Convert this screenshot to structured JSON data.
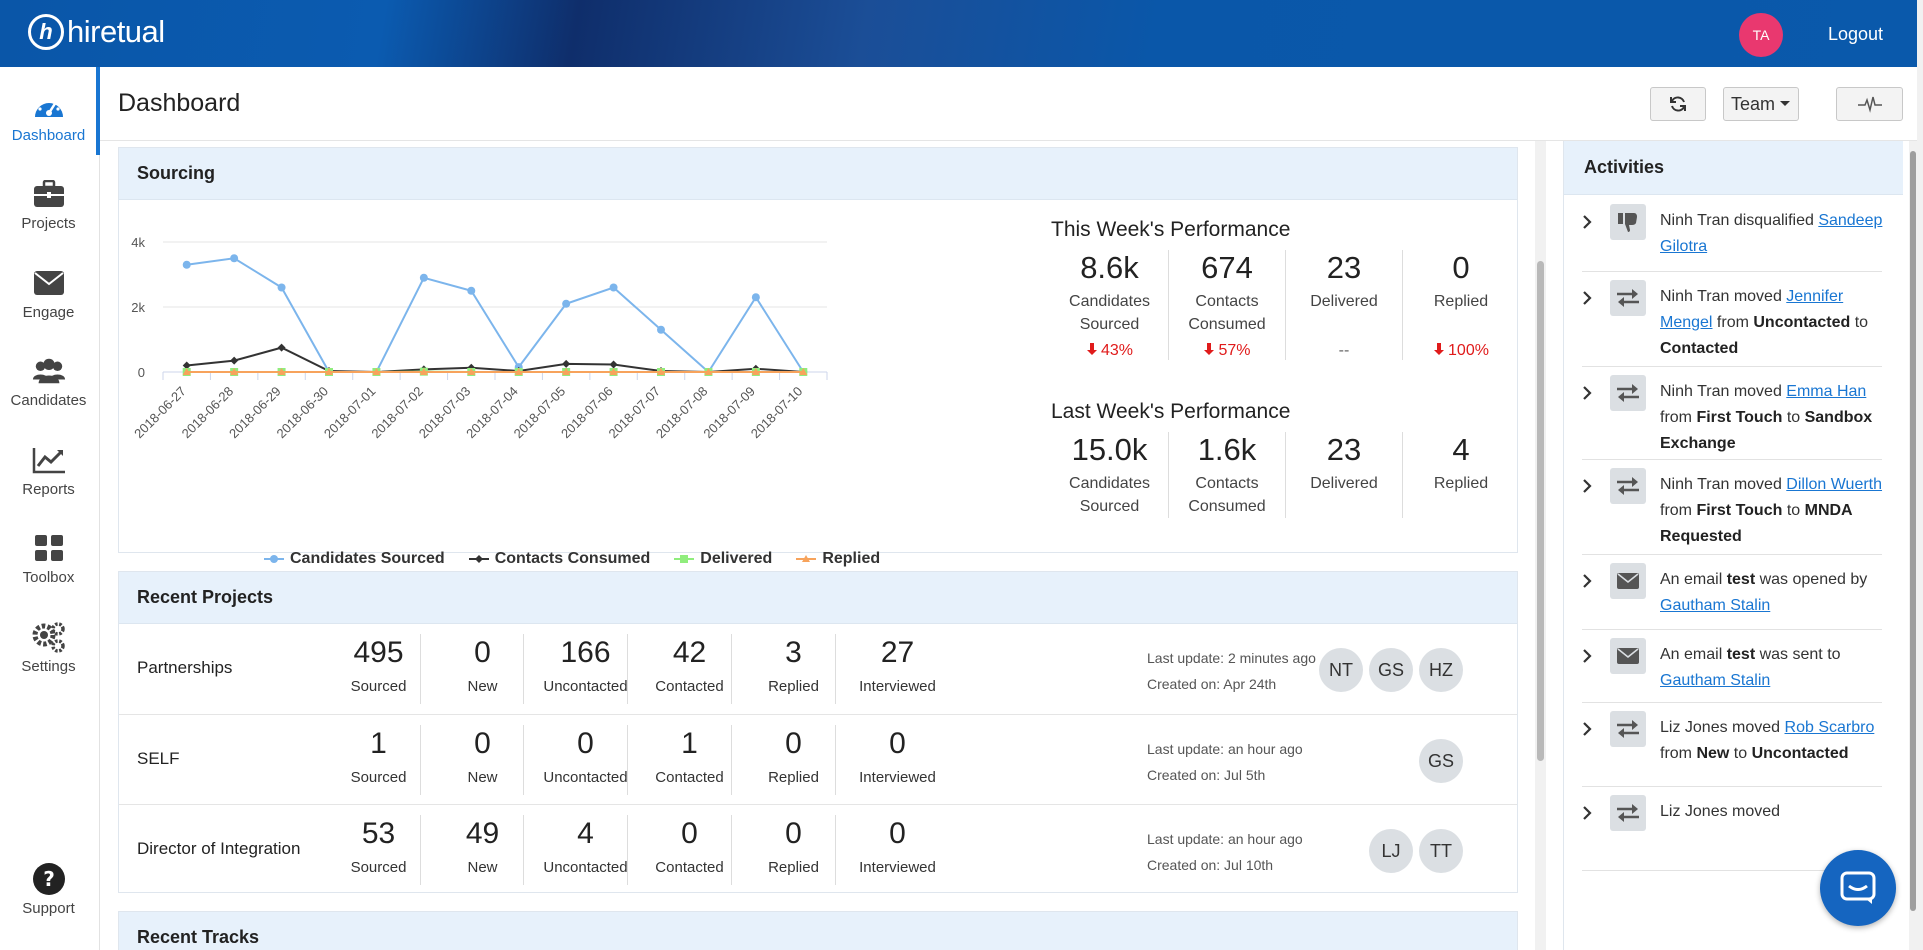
{
  "brand": {
    "logo_mark": "h",
    "name": "hiretual"
  },
  "topbar": {
    "avatar_initials": "TA",
    "logout_label": "Logout"
  },
  "sidebar": {
    "items": [
      {
        "label": "Dashboard",
        "icon": "gauge-icon",
        "active": true
      },
      {
        "label": "Projects",
        "icon": "briefcase-icon"
      },
      {
        "label": "Engage",
        "icon": "envelope-icon"
      },
      {
        "label": "Candidates",
        "icon": "users-icon"
      },
      {
        "label": "Reports",
        "icon": "chart-line-icon"
      },
      {
        "label": "Toolbox",
        "icon": "grid-icon"
      },
      {
        "label": "Settings",
        "icon": "gears-icon"
      }
    ],
    "support_label": "Support"
  },
  "header": {
    "title": "Dashboard",
    "team_label": "Team",
    "refresh_icon": "refresh-icon",
    "activity_icon": "pulse-icon"
  },
  "sourcing": {
    "title": "Sourcing",
    "this_week": {
      "title": "This Week's Performance",
      "cells": [
        {
          "value": "8.6k",
          "label1": "Candidates",
          "label2": "Sourced",
          "delta": "43%",
          "trend": "down"
        },
        {
          "value": "674",
          "label1": "Contacts",
          "label2": "Consumed",
          "delta": "57%",
          "trend": "down"
        },
        {
          "value": "23",
          "label1": "Delivered",
          "label2": "",
          "delta": "--",
          "trend": "none"
        },
        {
          "value": "0",
          "label1": "Replied",
          "label2": "",
          "delta": "100%",
          "trend": "down"
        }
      ]
    },
    "last_week": {
      "title": "Last Week's Performance",
      "cells": [
        {
          "value": "15.0k",
          "label1": "Candidates",
          "label2": "Sourced"
        },
        {
          "value": "1.6k",
          "label1": "Contacts",
          "label2": "Consumed"
        },
        {
          "value": "23",
          "label1": "Delivered",
          "label2": ""
        },
        {
          "value": "4",
          "label1": "Replied",
          "label2": ""
        }
      ]
    }
  },
  "chart_data": {
    "type": "line",
    "x": [
      "2018-06-27",
      "2018-06-28",
      "2018-06-29",
      "2018-06-30",
      "2018-07-01",
      "2018-07-02",
      "2018-07-03",
      "2018-07-04",
      "2018-07-05",
      "2018-07-06",
      "2018-07-07",
      "2018-07-08",
      "2018-07-09",
      "2018-07-10"
    ],
    "yticks": [
      "0",
      "2k",
      "4k"
    ],
    "ylim": [
      0,
      4000
    ],
    "legend_position": "bottom",
    "grid": true,
    "series": [
      {
        "name": "Candidates Sourced",
        "color": "#7cb5ec",
        "marker": "circle",
        "values": [
          3300,
          3500,
          2600,
          0,
          0,
          2900,
          2500,
          150,
          2100,
          2600,
          1300,
          0,
          2300,
          0
        ]
      },
      {
        "name": "Contacts Consumed",
        "color": "#333333",
        "marker": "diamond",
        "values": [
          200,
          350,
          750,
          30,
          0,
          80,
          130,
          30,
          250,
          230,
          30,
          0,
          100,
          0
        ]
      },
      {
        "name": "Delivered",
        "color": "#90ed7d",
        "marker": "square",
        "values": [
          0,
          0,
          0,
          0,
          0,
          10,
          0,
          0,
          0,
          0,
          0,
          0,
          0,
          0
        ]
      },
      {
        "name": "Replied",
        "color": "#f7a35c",
        "marker": "triangle",
        "values": [
          0,
          0,
          0,
          0,
          0,
          0,
          0,
          0,
          0,
          0,
          0,
          0,
          0,
          0
        ]
      }
    ]
  },
  "projects": {
    "title": "Recent Projects",
    "stat_labels": [
      "Sourced",
      "New",
      "Uncontacted",
      "Contacted",
      "Replied",
      "Interviewed"
    ],
    "rows": [
      {
        "name": "Partnerships",
        "stats": [
          "495",
          "0",
          "166",
          "42",
          "3",
          "27"
        ],
        "last_update": "Last update: 2 minutes ago",
        "created": "Created on: Apr 24th",
        "members": [
          "NT",
          "GS",
          "HZ"
        ]
      },
      {
        "name": "SELF",
        "stats": [
          "1",
          "0",
          "0",
          "1",
          "0",
          "0"
        ],
        "last_update": "Last update: an hour ago",
        "created": "Created on: Jul 5th",
        "members": [
          "GS"
        ]
      },
      {
        "name": "Director of Integration",
        "stats": [
          "53",
          "49",
          "4",
          "0",
          "0",
          "0"
        ],
        "last_update": "Last update: an hour ago",
        "created": "Created on: Jul 10th",
        "members": [
          "LJ",
          "TT"
        ]
      }
    ]
  },
  "tracks": {
    "title": "Recent Tracks"
  },
  "activities": {
    "title": "Activities",
    "items": [
      {
        "icon": "thumbs-down-icon",
        "parts": [
          [
            "t",
            "Ninh Tran disqualified "
          ],
          [
            "a",
            "Sandeep Gilotra"
          ]
        ]
      },
      {
        "icon": "arrows-exchange-icon",
        "parts": [
          [
            "t",
            "Ninh Tran moved "
          ],
          [
            "a",
            "Jennifer Mengel"
          ],
          [
            "t",
            " from "
          ],
          [
            "b",
            "Uncontacted"
          ],
          [
            "t",
            " to "
          ],
          [
            "b",
            "Contacted"
          ]
        ]
      },
      {
        "icon": "arrows-exchange-icon",
        "parts": [
          [
            "t",
            "Ninh Tran moved "
          ],
          [
            "a",
            "Emma Han"
          ],
          [
            "t",
            " from "
          ],
          [
            "b",
            "First Touch"
          ],
          [
            "t",
            " to "
          ],
          [
            "b",
            "Sandbox Exchange"
          ]
        ]
      },
      {
        "icon": "arrows-exchange-icon",
        "parts": [
          [
            "t",
            "Ninh Tran moved "
          ],
          [
            "a",
            "Dillon Wuerth"
          ],
          [
            "t",
            " from "
          ],
          [
            "b",
            "First Touch"
          ],
          [
            "t",
            " to "
          ],
          [
            "b",
            "MNDA Requested"
          ]
        ]
      },
      {
        "icon": "envelope-icon",
        "parts": [
          [
            "t",
            "An email "
          ],
          [
            "b",
            "test"
          ],
          [
            "t",
            " was opened by "
          ],
          [
            "a",
            "Gautham Stalin"
          ]
        ]
      },
      {
        "icon": "envelope-icon",
        "parts": [
          [
            "t",
            "An email "
          ],
          [
            "b",
            "test"
          ],
          [
            "t",
            " was sent to "
          ],
          [
            "a",
            "Gautham Stalin"
          ]
        ]
      },
      {
        "icon": "arrows-exchange-icon",
        "parts": [
          [
            "t",
            "Liz Jones moved "
          ],
          [
            "a",
            "Rob Scarbro"
          ],
          [
            "t",
            " from "
          ],
          [
            "b",
            "New"
          ],
          [
            "t",
            " to "
          ],
          [
            "b",
            "Uncontacted"
          ]
        ]
      },
      {
        "icon": "arrows-exchange-icon",
        "parts": [
          [
            "t",
            "Liz Jones moved"
          ]
        ]
      }
    ]
  },
  "chat": {
    "icon": "chat-bubble-icon"
  }
}
